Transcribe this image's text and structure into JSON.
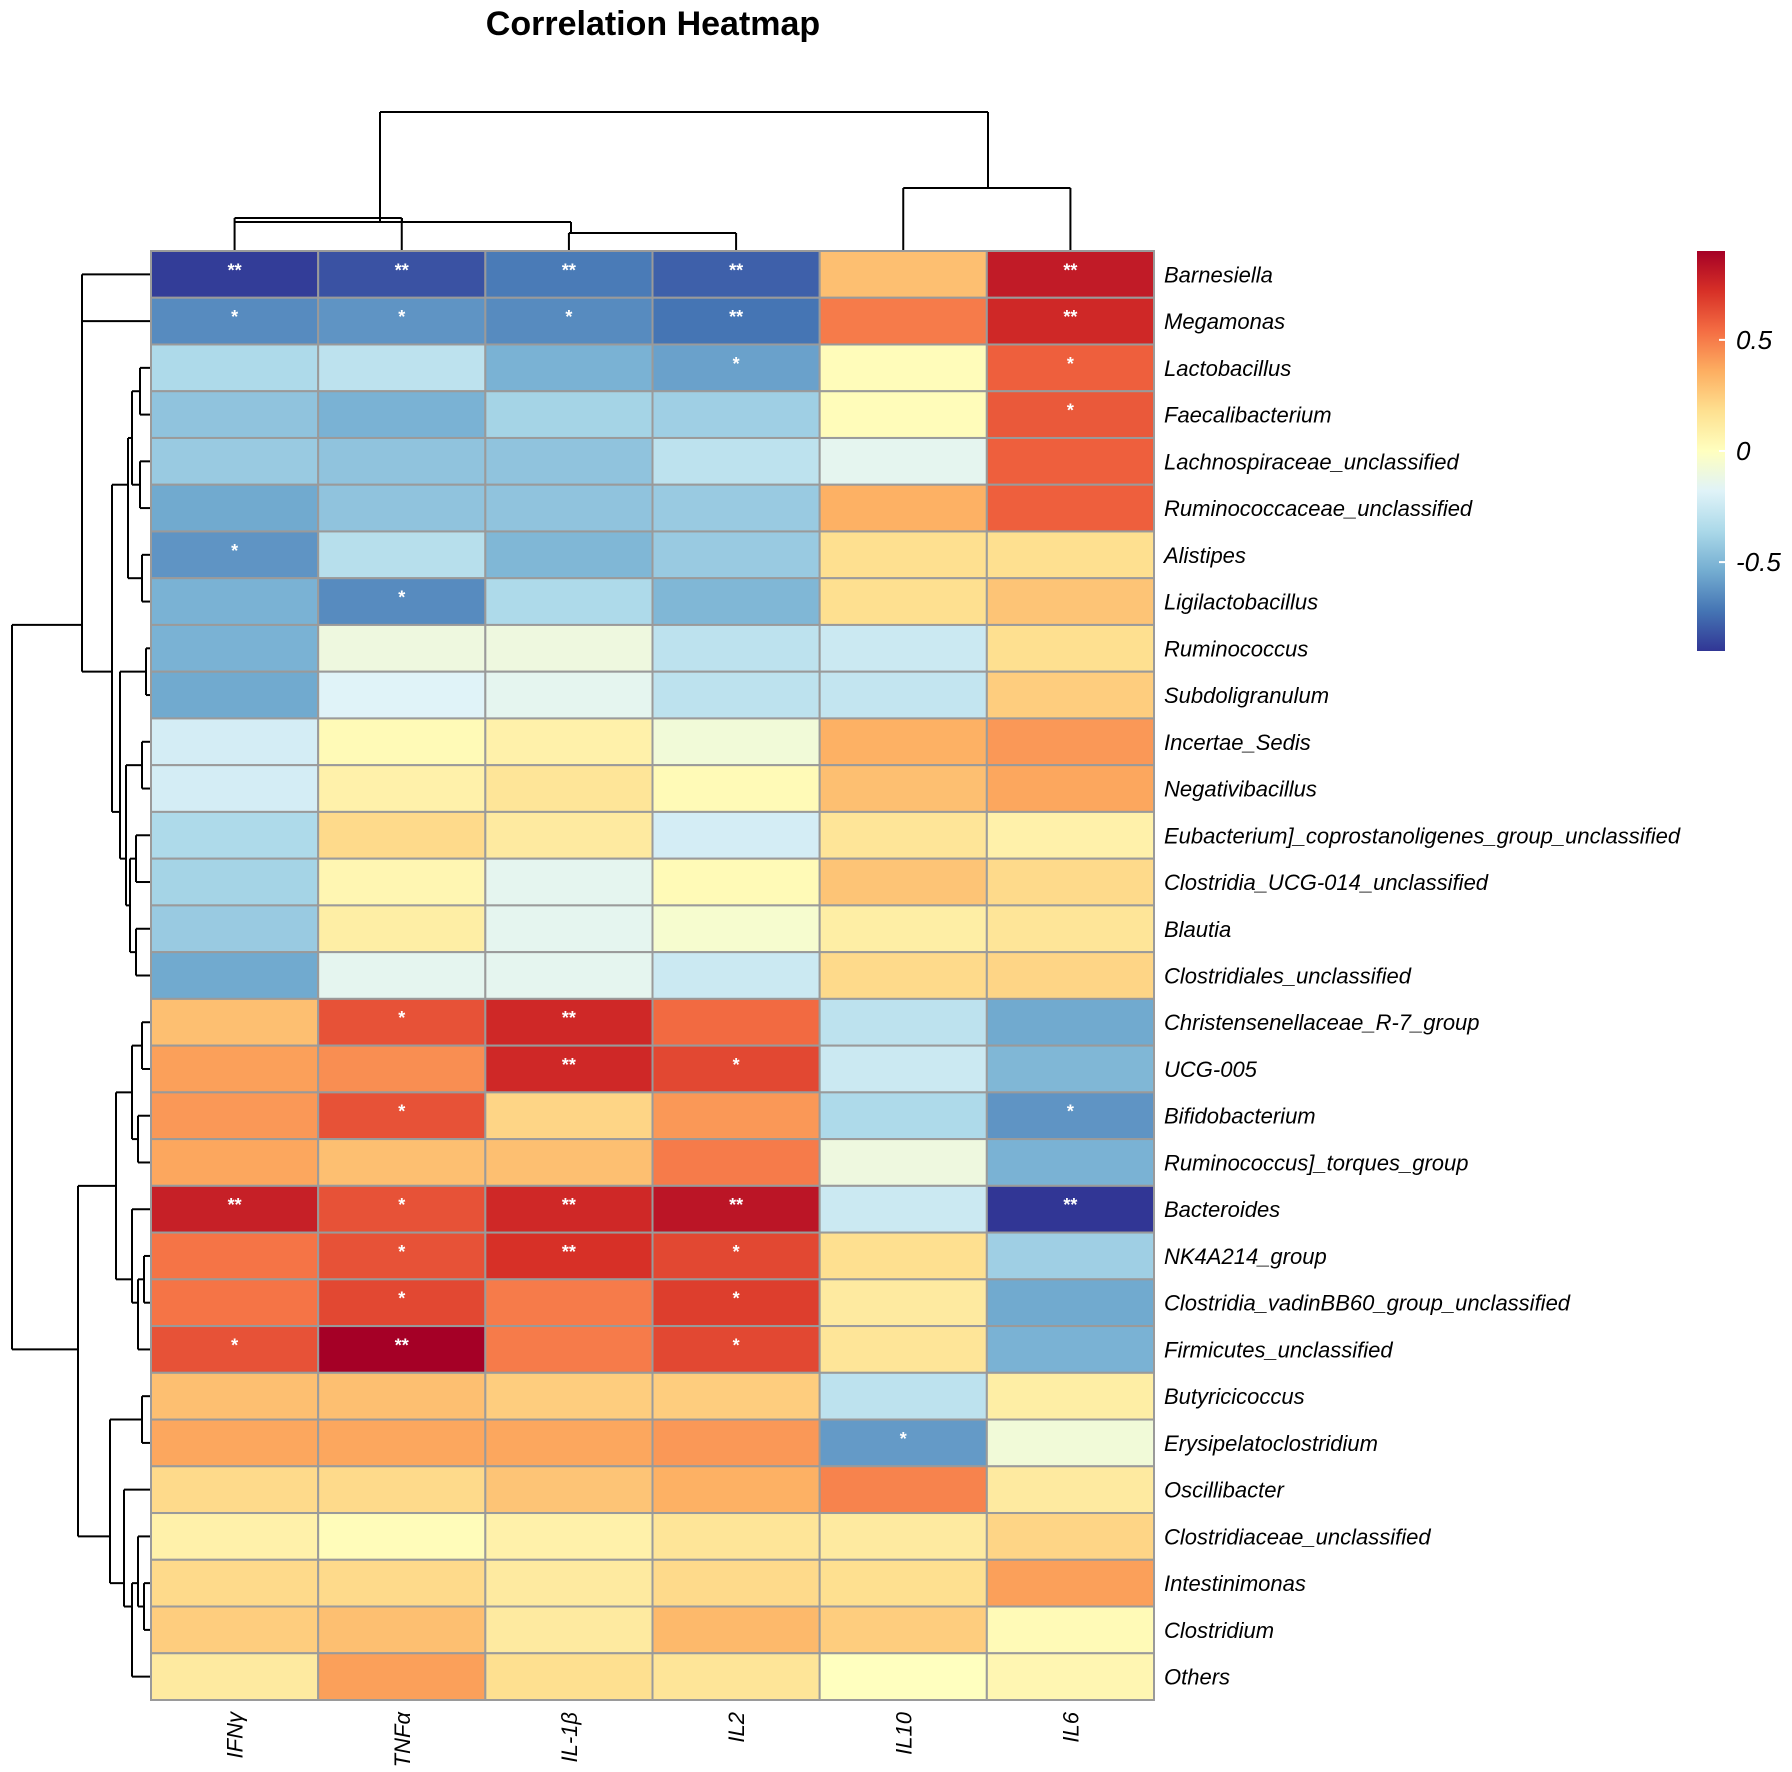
{
  "chart_data": {
    "type": "heatmap",
    "title": "Correlation Heatmap",
    "columns": [
      "IFNγ",
      "TNFα",
      "IL-1β",
      "IL2",
      "IL10",
      "IL6"
    ],
    "rows": [
      "Barnesiella",
      "Megamonas",
      "Lactobacillus",
      "Faecalibacterium",
      "Lachnospiraceae_unclassified",
      "Ruminococcaceae_unclassified",
      "Alistipes",
      "Ligilactobacillus",
      "Ruminococcus",
      "Subdoligranulum",
      "Incertae_Sedis",
      "Negativibacillus",
      "Eubacterium]_coprostanoligenes_group_unclassified",
      "Clostridia_UCG-014_unclassified",
      "Blautia",
      "Clostridiales_unclassified",
      "Christensenellaceae_R-7_group",
      "UCG-005",
      "Bifidobacterium",
      "Ruminococcus]_torques_group",
      "Bacteroides",
      "NK4A214_group",
      "Clostridia_vadinBB60_group_unclassified",
      "Firmicutes_unclassified",
      "Butyricicoccus",
      "Erysipelatoclostridium",
      "Oscillibacter",
      "Clostridiaceae_unclassified",
      "Intestinimonas",
      "Clostridium",
      "Others"
    ],
    "values": [
      [
        -0.88,
        -0.82,
        -0.7,
        -0.78,
        0.3,
        0.8
      ],
      [
        -0.65,
        -0.62,
        -0.65,
        -0.72,
        0.5,
        0.75
      ],
      [
        -0.35,
        -0.3,
        -0.52,
        -0.58,
        0.02,
        0.58
      ],
      [
        -0.45,
        -0.52,
        -0.38,
        -0.4,
        0.02,
        0.6
      ],
      [
        -0.42,
        -0.45,
        -0.45,
        -0.3,
        -0.15,
        0.58
      ],
      [
        -0.55,
        -0.45,
        -0.45,
        -0.42,
        0.35,
        0.58
      ],
      [
        -0.62,
        -0.32,
        -0.5,
        -0.42,
        0.18,
        0.18
      ],
      [
        -0.52,
        -0.65,
        -0.35,
        -0.5,
        0.18,
        0.28
      ],
      [
        -0.52,
        -0.1,
        -0.1,
        -0.3,
        -0.25,
        0.18
      ],
      [
        -0.55,
        -0.18,
        -0.15,
        -0.3,
        -0.28,
        0.25
      ],
      [
        -0.22,
        0.03,
        0.08,
        -0.08,
        0.35,
        0.42
      ],
      [
        -0.22,
        0.08,
        0.15,
        0.03,
        0.3,
        0.38
      ],
      [
        -0.35,
        0.2,
        0.12,
        -0.22,
        0.15,
        0.08
      ],
      [
        -0.38,
        0.05,
        -0.15,
        0.03,
        0.28,
        0.2
      ],
      [
        -0.42,
        0.1,
        -0.15,
        -0.05,
        0.1,
        0.15
      ],
      [
        -0.55,
        -0.15,
        -0.15,
        -0.25,
        0.2,
        0.22
      ],
      [
        0.3,
        0.62,
        0.75,
        0.55,
        -0.3,
        -0.55
      ],
      [
        0.4,
        0.45,
        0.75,
        0.65,
        -0.25,
        -0.5
      ],
      [
        0.42,
        0.62,
        0.22,
        0.42,
        -0.35,
        -0.62
      ],
      [
        0.38,
        0.3,
        0.3,
        0.5,
        -0.1,
        -0.52
      ],
      [
        0.78,
        0.62,
        0.75,
        0.82,
        -0.25,
        -0.92
      ],
      [
        0.52,
        0.62,
        0.72,
        0.65,
        0.18,
        -0.4
      ],
      [
        0.52,
        0.65,
        0.5,
        0.68,
        0.12,
        -0.55
      ],
      [
        0.62,
        0.9,
        0.5,
        0.65,
        0.15,
        -0.52
      ],
      [
        0.3,
        0.3,
        0.25,
        0.25,
        -0.3,
        0.1
      ],
      [
        0.38,
        0.38,
        0.38,
        0.42,
        -0.6,
        -0.08
      ],
      [
        0.2,
        0.2,
        0.28,
        0.35,
        0.48,
        0.12
      ],
      [
        0.08,
        0.02,
        0.08,
        0.15,
        0.12,
        0.22
      ],
      [
        0.2,
        0.2,
        0.12,
        0.2,
        0.18,
        0.4
      ],
      [
        0.25,
        0.3,
        0.12,
        0.32,
        0.25,
        0.03
      ],
      [
        0.12,
        0.4,
        0.18,
        0.15,
        0.0,
        0.05
      ]
    ],
    "significance": [
      [
        "**",
        "**",
        "**",
        "**",
        "",
        "**"
      ],
      [
        "*",
        "*",
        "*",
        "**",
        "",
        "**"
      ],
      [
        "",
        "",
        "",
        "*",
        "",
        "*"
      ],
      [
        "",
        "",
        "",
        "",
        "",
        "*"
      ],
      [
        "",
        "",
        "",
        "",
        "",
        ""
      ],
      [
        "",
        "",
        "",
        "",
        "",
        ""
      ],
      [
        "*",
        "",
        "",
        "",
        "",
        ""
      ],
      [
        "",
        "*",
        "",
        "",
        "",
        ""
      ],
      [
        "",
        "",
        "",
        "",
        "",
        ""
      ],
      [
        "",
        "",
        "",
        "",
        "",
        ""
      ],
      [
        "",
        "",
        "",
        "",
        "",
        ""
      ],
      [
        "",
        "",
        "",
        "",
        "",
        ""
      ],
      [
        "",
        "",
        "",
        "",
        "",
        ""
      ],
      [
        "",
        "",
        "",
        "",
        "",
        ""
      ],
      [
        "",
        "",
        "",
        "",
        "",
        ""
      ],
      [
        "",
        "",
        "",
        "",
        "",
        ""
      ],
      [
        "",
        "*",
        "**",
        "",
        "",
        ""
      ],
      [
        "",
        "",
        "**",
        "*",
        "",
        ""
      ],
      [
        "",
        "*",
        "",
        "",
        "",
        "*"
      ],
      [
        "",
        "",
        "",
        "",
        "",
        ""
      ],
      [
        "**",
        "*",
        "**",
        "**",
        "",
        "**"
      ],
      [
        "",
        "*",
        "**",
        "*",
        "",
        ""
      ],
      [
        "",
        "*",
        "",
        "*",
        "",
        ""
      ],
      [
        "*",
        "**",
        "",
        "*",
        "",
        ""
      ],
      [
        "",
        "",
        "",
        "",
        "",
        ""
      ],
      [
        "",
        "",
        "",
        "",
        "*",
        ""
      ],
      [
        "",
        "",
        "",
        "",
        "",
        ""
      ],
      [
        "",
        "",
        "",
        "",
        "",
        ""
      ],
      [
        "",
        "",
        "",
        "",
        "",
        ""
      ],
      [
        "",
        "",
        "",
        "",
        "",
        ""
      ],
      [
        "",
        "",
        "",
        "",
        "",
        ""
      ]
    ],
    "color_scale": {
      "range": [
        -0.9,
        0.9
      ],
      "ticks": [
        {
          "value": 0.5,
          "label": "0.5"
        },
        {
          "value": 0,
          "label": "0"
        },
        {
          "value": -0.5,
          "label": "-0.5"
        }
      ],
      "stops": [
        "#313695",
        "#4575b4",
        "#74add1",
        "#abd9e9",
        "#e0f3f8",
        "#ffffbf",
        "#fee090",
        "#fdae61",
        "#f46d43",
        "#d73027",
        "#a50026"
      ]
    },
    "column_dendrogram": "((IFNγ,TNFα),(IL-1β,IL2)),(IL10,IL6)",
    "row_dendrogram": "hierarchical clustering of 31 genera into two main groups",
    "legend": "right"
  }
}
